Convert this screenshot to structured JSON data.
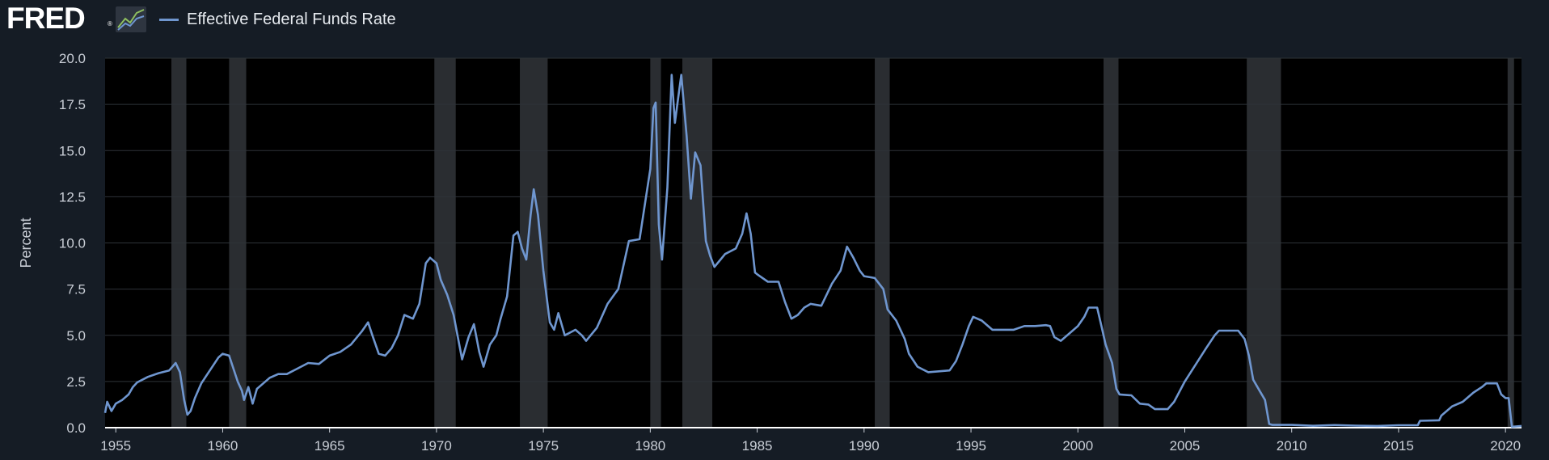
{
  "header": {
    "logo_text": "FRED",
    "logo_reg": "®",
    "logo_icon": "chart-trend-icon"
  },
  "chart_data": {
    "type": "line",
    "ylabel": "Percent",
    "ylim": [
      0,
      20
    ],
    "xlim": [
      1954.5,
      2020.75
    ],
    "yticks": [
      "0.0",
      "2.5",
      "5.0",
      "7.5",
      "10.0",
      "12.5",
      "15.0",
      "17.5",
      "20.0"
    ],
    "xticks": [
      "1955",
      "1960",
      "1965",
      "1970",
      "1975",
      "1980",
      "1985",
      "1990",
      "1995",
      "2000",
      "2005",
      "2010",
      "2015",
      "2020"
    ],
    "grid": true,
    "legend": "top-left",
    "colors": {
      "line": "#6f96cf",
      "plot_bg": "#000000",
      "page_bg": "#151c25",
      "recession": "#2a2d31",
      "grid": "#2e3338",
      "baseline": "#ffffff"
    },
    "recessions": [
      [
        1957.6,
        1958.3
      ],
      [
        1960.3,
        1961.1
      ],
      [
        1969.9,
        1970.9
      ],
      [
        1973.9,
        1975.2
      ],
      [
        1980.0,
        1980.5
      ],
      [
        1981.5,
        1982.9
      ],
      [
        1990.5,
        1991.2
      ],
      [
        2001.2,
        2001.9
      ],
      [
        2007.9,
        2009.5
      ],
      [
        2020.1,
        2020.4
      ]
    ],
    "series": [
      {
        "name": "Effective Federal Funds Rate",
        "points": [
          [
            1954.5,
            0.8
          ],
          [
            1954.6,
            1.4
          ],
          [
            1954.8,
            0.9
          ],
          [
            1955.0,
            1.3
          ],
          [
            1955.3,
            1.5
          ],
          [
            1955.6,
            1.8
          ],
          [
            1955.8,
            2.2
          ],
          [
            1956.0,
            2.45
          ],
          [
            1956.5,
            2.75
          ],
          [
            1957.0,
            2.95
          ],
          [
            1957.5,
            3.1
          ],
          [
            1957.8,
            3.5
          ],
          [
            1958.0,
            3.0
          ],
          [
            1958.2,
            1.5
          ],
          [
            1958.35,
            0.7
          ],
          [
            1958.5,
            0.9
          ],
          [
            1958.7,
            1.6
          ],
          [
            1959.0,
            2.4
          ],
          [
            1959.4,
            3.1
          ],
          [
            1959.8,
            3.8
          ],
          [
            1960.0,
            4.0
          ],
          [
            1960.3,
            3.9
          ],
          [
            1960.5,
            3.2
          ],
          [
            1960.7,
            2.5
          ],
          [
            1960.9,
            2.0
          ],
          [
            1961.0,
            1.5
          ],
          [
            1961.2,
            2.2
          ],
          [
            1961.4,
            1.3
          ],
          [
            1961.6,
            2.1
          ],
          [
            1961.9,
            2.4
          ],
          [
            1962.2,
            2.7
          ],
          [
            1962.6,
            2.9
          ],
          [
            1963.0,
            2.9
          ],
          [
            1963.5,
            3.2
          ],
          [
            1964.0,
            3.5
          ],
          [
            1964.5,
            3.45
          ],
          [
            1965.0,
            3.9
          ],
          [
            1965.5,
            4.1
          ],
          [
            1966.0,
            4.5
          ],
          [
            1966.5,
            5.2
          ],
          [
            1966.8,
            5.7
          ],
          [
            1967.0,
            5.0
          ],
          [
            1967.3,
            4.0
          ],
          [
            1967.6,
            3.9
          ],
          [
            1967.9,
            4.3
          ],
          [
            1968.2,
            5.0
          ],
          [
            1968.5,
            6.1
          ],
          [
            1968.9,
            5.9
          ],
          [
            1969.2,
            6.7
          ],
          [
            1969.5,
            8.9
          ],
          [
            1969.7,
            9.2
          ],
          [
            1970.0,
            8.9
          ],
          [
            1970.2,
            8.0
          ],
          [
            1970.5,
            7.2
          ],
          [
            1970.8,
            6.1
          ],
          [
            1971.0,
            4.9
          ],
          [
            1971.2,
            3.7
          ],
          [
            1971.5,
            4.9
          ],
          [
            1971.75,
            5.6
          ],
          [
            1972.0,
            4.1
          ],
          [
            1972.2,
            3.3
          ],
          [
            1972.5,
            4.5
          ],
          [
            1972.8,
            5.0
          ],
          [
            1973.0,
            5.9
          ],
          [
            1973.3,
            7.1
          ],
          [
            1973.6,
            10.4
          ],
          [
            1973.8,
            10.6
          ],
          [
            1974.0,
            9.7
          ],
          [
            1974.2,
            9.1
          ],
          [
            1974.4,
            11.5
          ],
          [
            1974.55,
            12.9
          ],
          [
            1974.75,
            11.5
          ],
          [
            1975.0,
            8.5
          ],
          [
            1975.3,
            5.7
          ],
          [
            1975.5,
            5.3
          ],
          [
            1975.7,
            6.2
          ],
          [
            1976.0,
            5.0
          ],
          [
            1976.5,
            5.3
          ],
          [
            1976.8,
            5.0
          ],
          [
            1977.0,
            4.7
          ],
          [
            1977.5,
            5.4
          ],
          [
            1978.0,
            6.7
          ],
          [
            1978.5,
            7.5
          ],
          [
            1979.0,
            10.1
          ],
          [
            1979.5,
            10.2
          ],
          [
            1979.8,
            12.5
          ],
          [
            1980.0,
            14.0
          ],
          [
            1980.15,
            17.3
          ],
          [
            1980.25,
            17.6
          ],
          [
            1980.4,
            11.0
          ],
          [
            1980.55,
            9.1
          ],
          [
            1980.8,
            13.0
          ],
          [
            1981.0,
            19.1
          ],
          [
            1981.15,
            16.5
          ],
          [
            1981.3,
            17.8
          ],
          [
            1981.45,
            19.1
          ],
          [
            1981.7,
            15.8
          ],
          [
            1981.9,
            12.4
          ],
          [
            1982.1,
            14.9
          ],
          [
            1982.35,
            14.2
          ],
          [
            1982.6,
            10.1
          ],
          [
            1982.8,
            9.3
          ],
          [
            1983.0,
            8.7
          ],
          [
            1983.5,
            9.4
          ],
          [
            1984.0,
            9.7
          ],
          [
            1984.3,
            10.5
          ],
          [
            1984.5,
            11.6
          ],
          [
            1984.7,
            10.5
          ],
          [
            1984.9,
            8.4
          ],
          [
            1985.0,
            8.3
          ],
          [
            1985.5,
            7.9
          ],
          [
            1986.0,
            7.9
          ],
          [
            1986.3,
            6.8
          ],
          [
            1986.6,
            5.9
          ],
          [
            1986.9,
            6.1
          ],
          [
            1987.2,
            6.5
          ],
          [
            1987.5,
            6.7
          ],
          [
            1988.0,
            6.6
          ],
          [
            1988.5,
            7.8
          ],
          [
            1988.9,
            8.5
          ],
          [
            1989.2,
            9.8
          ],
          [
            1989.5,
            9.2
          ],
          [
            1989.8,
            8.5
          ],
          [
            1990.0,
            8.2
          ],
          [
            1990.5,
            8.1
          ],
          [
            1990.9,
            7.5
          ],
          [
            1991.1,
            6.4
          ],
          [
            1991.5,
            5.8
          ],
          [
            1991.9,
            4.8
          ],
          [
            1992.1,
            4.0
          ],
          [
            1992.5,
            3.3
          ],
          [
            1993.0,
            3.0
          ],
          [
            1993.5,
            3.05
          ],
          [
            1994.0,
            3.1
          ],
          [
            1994.3,
            3.6
          ],
          [
            1994.6,
            4.5
          ],
          [
            1994.9,
            5.5
          ],
          [
            1995.1,
            6.0
          ],
          [
            1995.5,
            5.8
          ],
          [
            1996.0,
            5.3
          ],
          [
            1996.5,
            5.3
          ],
          [
            1997.0,
            5.3
          ],
          [
            1997.5,
            5.5
          ],
          [
            1998.0,
            5.5
          ],
          [
            1998.5,
            5.55
          ],
          [
            1998.7,
            5.5
          ],
          [
            1998.9,
            4.9
          ],
          [
            1999.2,
            4.7
          ],
          [
            1999.6,
            5.1
          ],
          [
            2000.0,
            5.5
          ],
          [
            2000.3,
            6.0
          ],
          [
            2000.5,
            6.5
          ],
          [
            2000.9,
            6.5
          ],
          [
            2001.1,
            5.5
          ],
          [
            2001.3,
            4.5
          ],
          [
            2001.6,
            3.5
          ],
          [
            2001.8,
            2.1
          ],
          [
            2001.95,
            1.8
          ],
          [
            2002.5,
            1.75
          ],
          [
            2002.9,
            1.3
          ],
          [
            2003.3,
            1.25
          ],
          [
            2003.6,
            1.0
          ],
          [
            2004.2,
            1.0
          ],
          [
            2004.5,
            1.4
          ],
          [
            2005.0,
            2.5
          ],
          [
            2005.5,
            3.4
          ],
          [
            2006.0,
            4.3
          ],
          [
            2006.4,
            5.0
          ],
          [
            2006.6,
            5.25
          ],
          [
            2007.5,
            5.25
          ],
          [
            2007.8,
            4.8
          ],
          [
            2008.0,
            3.9
          ],
          [
            2008.2,
            2.6
          ],
          [
            2008.5,
            2.0
          ],
          [
            2008.75,
            1.5
          ],
          [
            2008.95,
            0.2
          ],
          [
            2009.1,
            0.15
          ],
          [
            2010.0,
            0.15
          ],
          [
            2011.0,
            0.1
          ],
          [
            2012.0,
            0.14
          ],
          [
            2013.0,
            0.11
          ],
          [
            2014.0,
            0.09
          ],
          [
            2015.0,
            0.13
          ],
          [
            2015.9,
            0.13
          ],
          [
            2016.0,
            0.37
          ],
          [
            2016.9,
            0.4
          ],
          [
            2017.0,
            0.65
          ],
          [
            2017.5,
            1.15
          ],
          [
            2018.0,
            1.4
          ],
          [
            2018.5,
            1.9
          ],
          [
            2018.9,
            2.2
          ],
          [
            2019.1,
            2.4
          ],
          [
            2019.6,
            2.4
          ],
          [
            2019.8,
            1.8
          ],
          [
            2020.0,
            1.6
          ],
          [
            2020.15,
            1.6
          ],
          [
            2020.3,
            0.05
          ],
          [
            2020.75,
            0.09
          ]
        ]
      }
    ]
  }
}
